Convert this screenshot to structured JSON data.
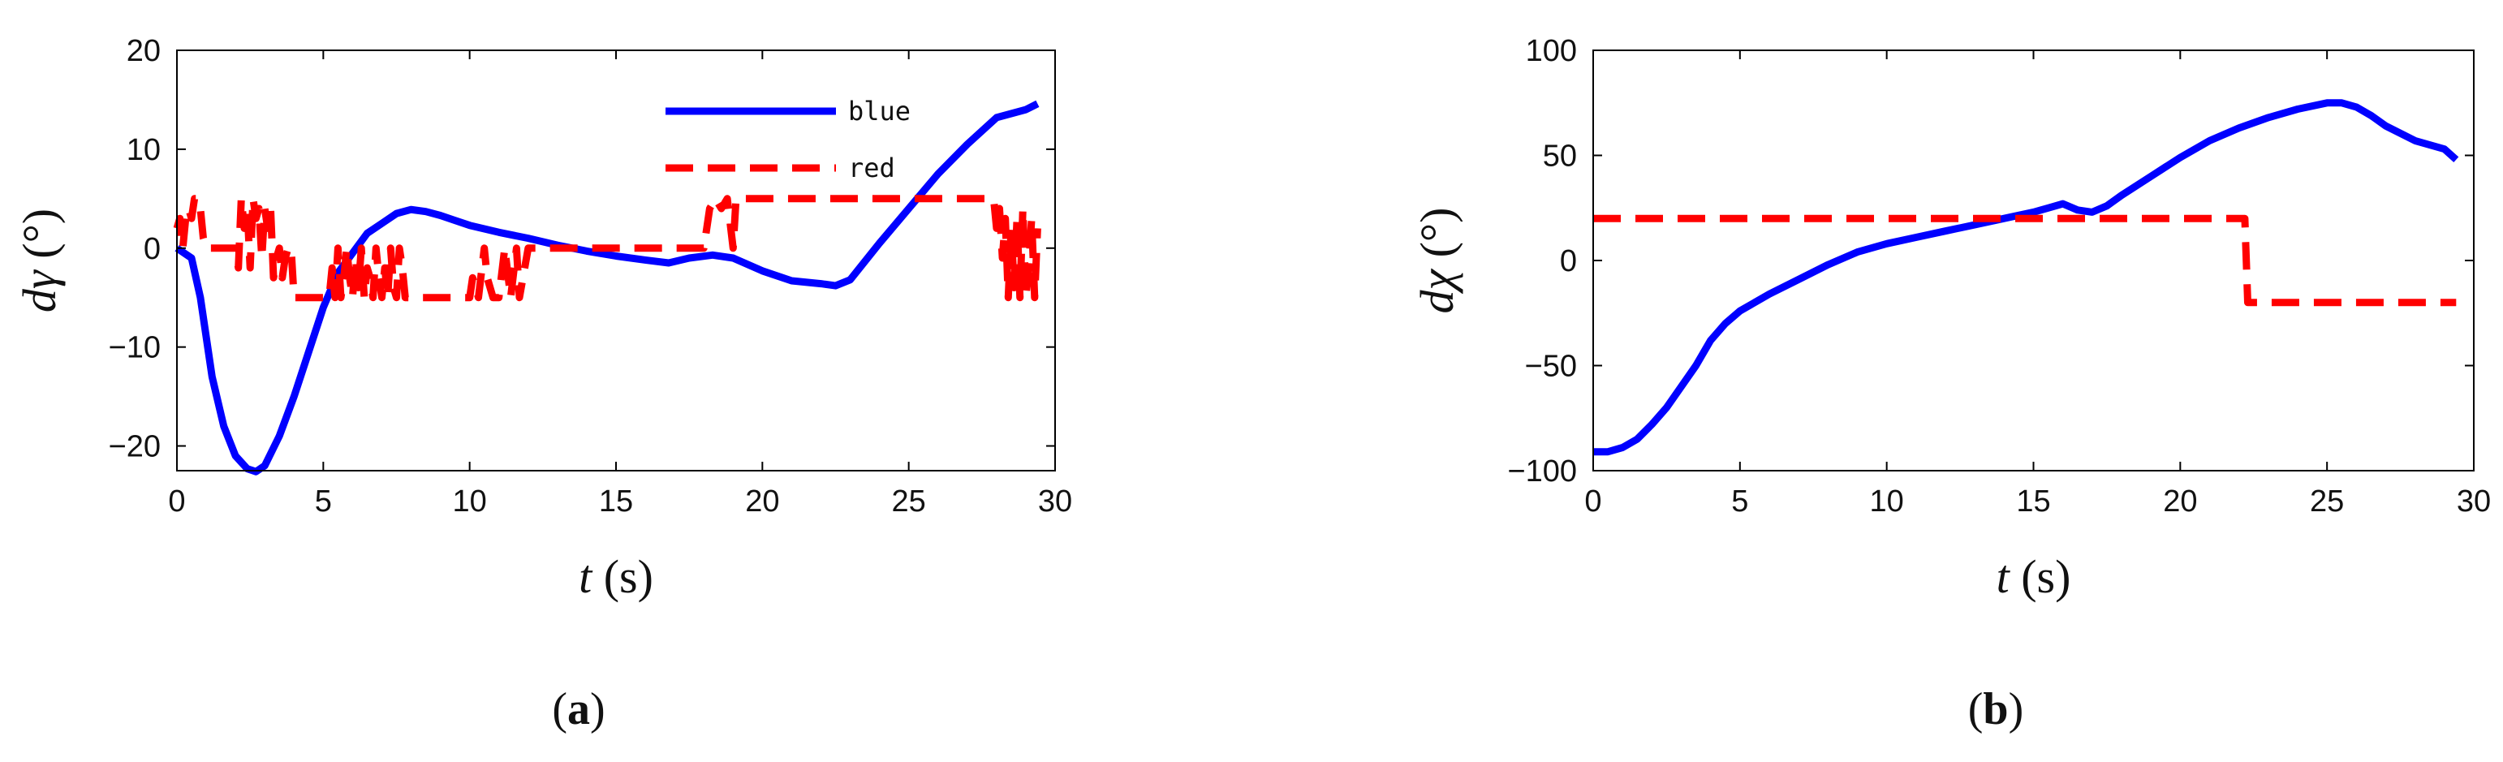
{
  "chart_data": [
    {
      "type": "line",
      "panel_caption": "a",
      "xlabel": {
        "var": "t",
        "unit": "(s)"
      },
      "ylabel": {
        "var": "dγ",
        "unit": "(°)"
      },
      "xlim": [
        0,
        30
      ],
      "ylim": [
        -22.5,
        20
      ],
      "xticks": [
        0,
        5,
        10,
        15,
        20,
        25,
        30
      ],
      "yticks": [
        -20,
        -10,
        0,
        10,
        20
      ],
      "ytick_labels": [
        "−20",
        "−10",
        "0",
        "10",
        "20"
      ],
      "grid": false,
      "legend": "top-right",
      "series": [
        {
          "name": "blue",
          "color": "#0000ff",
          "style": "solid",
          "x": [
            0,
            0.5,
            0.8,
            1.2,
            1.6,
            2.0,
            2.4,
            2.7,
            3.0,
            3.5,
            4.0,
            4.5,
            5.0,
            5.5,
            6.0,
            6.5,
            7.0,
            7.5,
            8.0,
            8.5,
            9.0,
            9.5,
            10,
            11,
            12,
            13,
            14,
            15,
            16,
            16.8,
            17.5,
            18.3,
            19,
            20,
            21,
            22,
            22.5,
            23,
            24,
            25,
            26,
            27,
            28,
            29,
            29.4
          ],
          "y": [
            0,
            -1,
            -5,
            -13,
            -18,
            -21,
            -22.3,
            -22.6,
            -22,
            -19,
            -15,
            -10.5,
            -6,
            -2.5,
            -0.5,
            1.5,
            2.5,
            3.5,
            3.9,
            3.7,
            3.3,
            2.8,
            2.3,
            1.6,
            1,
            0.3,
            -0.3,
            -0.8,
            -1.2,
            -1.5,
            -1.0,
            -0.7,
            -1,
            -2.3,
            -3.3,
            -3.6,
            -3.8,
            -3.2,
            0.5,
            4,
            7.5,
            10.5,
            13.2,
            14,
            14.6
          ]
        },
        {
          "name": "red",
          "color": "#ff0000",
          "style": "dashed",
          "x": [
            0,
            0.1,
            0.2,
            0.3,
            0.4,
            0.5,
            0.6,
            0.7,
            0.8,
            0.9,
            1.0,
            1.1,
            1.2,
            1.4,
            1.6,
            1.8,
            2.0,
            2.1,
            2.2,
            2.3,
            2.4,
            2.5,
            2.6,
            2.7,
            2.8,
            2.9,
            3.0,
            3.1,
            3.2,
            3.3,
            3.4,
            3.5,
            3.6,
            3.7,
            3.8,
            3.9,
            4.0,
            4.3,
            4.6,
            4.9,
            5.2,
            5.3,
            5.4,
            5.5,
            5.6,
            5.7,
            5.8,
            5.9,
            6.0,
            6.1,
            6.2,
            6.3,
            6.4,
            6.5,
            6.6,
            6.7,
            6.8,
            6.9,
            7.0,
            7.1,
            7.2,
            7.3,
            7.4,
            7.5,
            7.6,
            7.7,
            7.8,
            8.0,
            9.0,
            10.0,
            10.1,
            10.3,
            10.5,
            10.6,
            10.8,
            11.0,
            11.2,
            11.4,
            11.6,
            11.7,
            12,
            13,
            14,
            15,
            16,
            17,
            17.5,
            18,
            18.2,
            18.4,
            18.6,
            18.8,
            19.0,
            19.1,
            19.2,
            19.5,
            20,
            22,
            24,
            26,
            27,
            27.9,
            28.0,
            28.1,
            28.2,
            28.3,
            28.4,
            28.5,
            28.6,
            28.7,
            28.8,
            28.9,
            29.0,
            29.1,
            29.2,
            29.3,
            29.4
          ],
          "y": [
            2,
            3,
            0,
            3,
            4,
            3,
            5,
            5,
            4,
            1,
            0,
            0,
            0,
            0,
            0,
            0,
            0,
            -2,
            5,
            2,
            4,
            -2,
            5,
            3,
            4,
            -1,
            4,
            2,
            4,
            -3,
            -1,
            0,
            -3,
            -1,
            0,
            0,
            -5,
            -5,
            -5,
            -5,
            -5,
            -2,
            -5,
            0,
            -5,
            -3,
            0,
            -3,
            -5,
            -1,
            -4,
            0,
            -5,
            -2,
            -3,
            -5,
            0,
            -3,
            -5,
            -2,
            -5,
            0,
            -4,
            -5,
            0,
            -2,
            -5,
            -5,
            -5,
            -5,
            -3,
            -5,
            0,
            -3,
            -5,
            -5,
            0,
            -5,
            0,
            -5,
            0,
            0,
            0,
            0,
            0,
            0,
            0,
            0,
            4,
            5,
            4,
            5,
            0,
            5,
            5,
            5,
            5,
            5,
            5,
            5,
            5,
            5,
            2,
            4,
            -1,
            3,
            -5,
            2,
            -4,
            3,
            -5,
            4,
            -5,
            -2,
            3,
            -5,
            2
          ]
        }
      ]
    },
    {
      "type": "line",
      "panel_caption": "b",
      "xlabel": {
        "var": "t",
        "unit": "(s)"
      },
      "ylabel": {
        "var": "dχ",
        "unit": "(°)"
      },
      "xlim": [
        0,
        30
      ],
      "ylim": [
        -100,
        100
      ],
      "xticks": [
        0,
        5,
        10,
        15,
        20,
        25,
        30
      ],
      "yticks": [
        -100,
        -50,
        0,
        50,
        100
      ],
      "ytick_labels": [
        "−100",
        "−50",
        "0",
        "50",
        "100"
      ],
      "grid": false,
      "series": [
        {
          "color": "#0000ff",
          "style": "solid",
          "x": [
            0,
            0.5,
            1,
            1.5,
            2,
            2.5,
            3,
            3.5,
            4,
            4.5,
            5,
            6,
            7,
            8,
            9,
            10,
            11,
            12,
            13,
            14,
            15,
            15.5,
            16,
            16.5,
            17,
            17.5,
            18,
            19,
            20,
            21,
            22,
            23,
            24,
            25,
            25.5,
            26,
            26.5,
            27,
            28,
            29,
            29.4
          ],
          "y": [
            -91,
            -91,
            -89,
            -85,
            -78,
            -70,
            -60,
            -50,
            -38,
            -30,
            -24,
            -16,
            -9,
            -2,
            4,
            8,
            11,
            14,
            17,
            20,
            23,
            25,
            27,
            24,
            23,
            26,
            31,
            40,
            49,
            57,
            63,
            68,
            72,
            75,
            75,
            73,
            69,
            64,
            57,
            53,
            48
          ]
        },
        {
          "color": "#ff0000",
          "style": "dashed",
          "x": [
            0,
            22.2,
            22.3,
            29.4
          ],
          "y": [
            20,
            20,
            -20,
            -20
          ]
        }
      ]
    }
  ]
}
